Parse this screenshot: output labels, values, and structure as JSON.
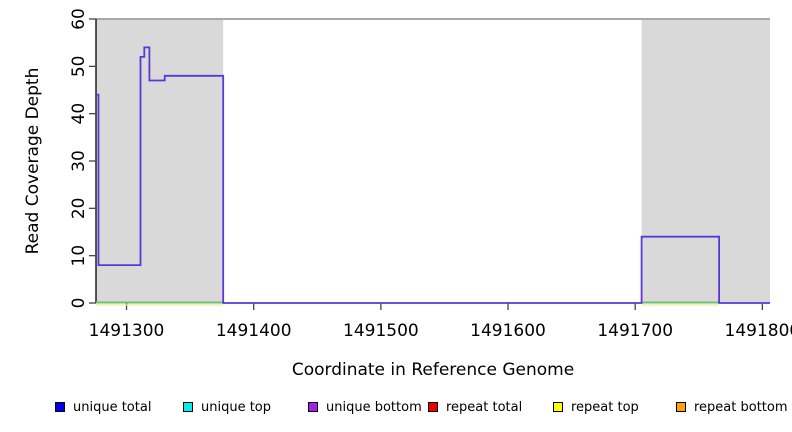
{
  "chart_data": {
    "type": "line",
    "title": "",
    "xlabel": "Coordinate in Reference Genome",
    "ylabel": "Read Coverage Depth",
    "xlim": [
      1491276,
      1491806
    ],
    "ylim": [
      0,
      60
    ],
    "x_ticks": [
      1491300,
      1491400,
      1491500,
      1491600,
      1491700,
      1491800
    ],
    "y_ticks": [
      0,
      10,
      20,
      30,
      40,
      50,
      60
    ],
    "grid": false,
    "legend_position": "bottom",
    "colors": {
      "coverage_line": "#5A38D8",
      "repeat_region_fill": "#D9D9D9",
      "zero_marker_green": "#6FBF73",
      "zero_marker_yellow": "#EDED9E",
      "top_border": "#8C8C8C",
      "axis": "#000000",
      "tick": "#444444"
    },
    "repeat_regions": [
      {
        "start": 1491276,
        "end": 1491376
      },
      {
        "start": 1491705,
        "end": 1491806
      }
    ],
    "coverage_steps": [
      {
        "start": 1491276,
        "end": 1491278,
        "depth": 44
      },
      {
        "start": 1491278,
        "end": 1491311,
        "depth": 8
      },
      {
        "start": 1491311,
        "end": 1491314,
        "depth": 52
      },
      {
        "start": 1491314,
        "end": 1491318,
        "depth": 54
      },
      {
        "start": 1491318,
        "end": 1491330,
        "depth": 47
      },
      {
        "start": 1491330,
        "end": 1491376,
        "depth": 48
      },
      {
        "start": 1491376,
        "end": 1491705,
        "depth": 0
      },
      {
        "start": 1491705,
        "end": 1491766,
        "depth": 14
      },
      {
        "start": 1491766,
        "end": 1491806,
        "depth": 0
      }
    ],
    "zero_coverage_marker_segments": [
      {
        "start": 1491276,
        "end": 1491376
      },
      {
        "start": 1491705,
        "end": 1491766
      }
    ],
    "legend": [
      {
        "label": "unique total",
        "color": "#0000EE"
      },
      {
        "label": "unique top",
        "color": "#00EEEE"
      },
      {
        "label": "unique bottom",
        "color": "#A020F0"
      },
      {
        "label": "repeat total",
        "color": "#EE0000"
      },
      {
        "label": "repeat top",
        "color": "#FFFF00"
      },
      {
        "label": "repeat bottom",
        "color": "#FFA500"
      }
    ]
  }
}
